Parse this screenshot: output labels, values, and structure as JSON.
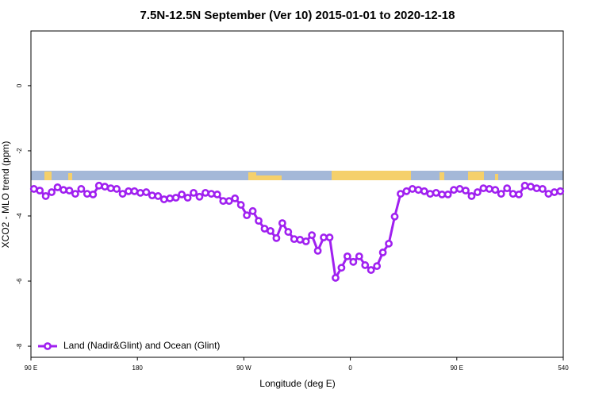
{
  "chart_data": {
    "type": "line",
    "title": "7.5N-12.5N September (Ver 10)   2015-01-01 to 2020-12-18",
    "x_label": "Longitude (deg E)",
    "y_label": "XCO2 - MLO trend (ppm)",
    "x": [
      92.5,
      97.5,
      102.5,
      107.5,
      112.5,
      117.5,
      122.5,
      127.5,
      132.5,
      137.5,
      142.5,
      147.5,
      152.5,
      157.5,
      162.5,
      167.5,
      172.5,
      177.5,
      182.5,
      187.5,
      192.5,
      197.5,
      202.5,
      207.5,
      212.5,
      217.5,
      222.5,
      227.5,
      232.5,
      237.5,
      242.5,
      247.5,
      252.5,
      257.5,
      262.5,
      267.5,
      272.5,
      277.5,
      282.5,
      287.5,
      292.5,
      297.5,
      302.5,
      307.5,
      312.5,
      317.5,
      322.5,
      327.5,
      332.5,
      337.5,
      342.5,
      347.5,
      352.5,
      357.5,
      362.5,
      367.5,
      372.5,
      377.5,
      382.5,
      387.5,
      392.5,
      397.5,
      402.5,
      407.5,
      412.5,
      417.5,
      422.5,
      427.5,
      432.5,
      437.5,
      442.5,
      447.5,
      452.5,
      457.5,
      462.5,
      467.5,
      472.5,
      477.5,
      482.5,
      487.5,
      492.5,
      497.5,
      502.5,
      507.5,
      512.5,
      517.5,
      522.5,
      527.5,
      532.5,
      537.5
    ],
    "series": [
      {
        "name": "Land (Nadir&Glint) and Ocean (Glint)",
        "color": "#a020f0",
        "values": [
          -3.17,
          -3.22,
          -3.39,
          -3.27,
          -3.12,
          -3.2,
          -3.22,
          -3.32,
          -3.17,
          -3.32,
          -3.34,
          -3.07,
          -3.1,
          -3.15,
          -3.17,
          -3.32,
          -3.24,
          -3.24,
          -3.29,
          -3.27,
          -3.37,
          -3.39,
          -3.49,
          -3.46,
          -3.44,
          -3.34,
          -3.44,
          -3.29,
          -3.41,
          -3.29,
          -3.32,
          -3.34,
          -3.54,
          -3.54,
          -3.46,
          -3.66,
          -3.98,
          -3.85,
          -4.15,
          -4.39,
          -4.46,
          -4.68,
          -4.22,
          -4.49,
          -4.71,
          -4.73,
          -4.78,
          -4.59,
          -5.07,
          -4.66,
          -4.66,
          -5.9,
          -5.59,
          -5.24,
          -5.41,
          -5.24,
          -5.51,
          -5.66,
          -5.54,
          -5.12,
          -4.85,
          -4.02,
          -3.32,
          -3.24,
          -3.17,
          -3.2,
          -3.24,
          -3.32,
          -3.29,
          -3.34,
          -3.34,
          -3.2,
          -3.17,
          -3.22,
          -3.39,
          -3.27,
          -3.15,
          -3.17,
          -3.2,
          -3.32,
          -3.15,
          -3.32,
          -3.34,
          -3.07,
          -3.1,
          -3.15,
          -3.17,
          -3.32,
          -3.27,
          -3.24
        ]
      }
    ],
    "xlim": [
      90,
      540
    ],
    "xticks": [
      {
        "value": 90,
        "label": "90 E"
      },
      180,
      {
        "value": 270,
        "label": "90 W"
      },
      {
        "value": 360,
        "label": "0"
      },
      {
        "value": 450,
        "label": "90 E"
      },
      540
    ],
    "ylim": [
      -8.34,
      1.68
    ],
    "yticks": [
      0,
      -2,
      -4,
      -6,
      -8
    ],
    "legend": "bottom-left"
  }
}
